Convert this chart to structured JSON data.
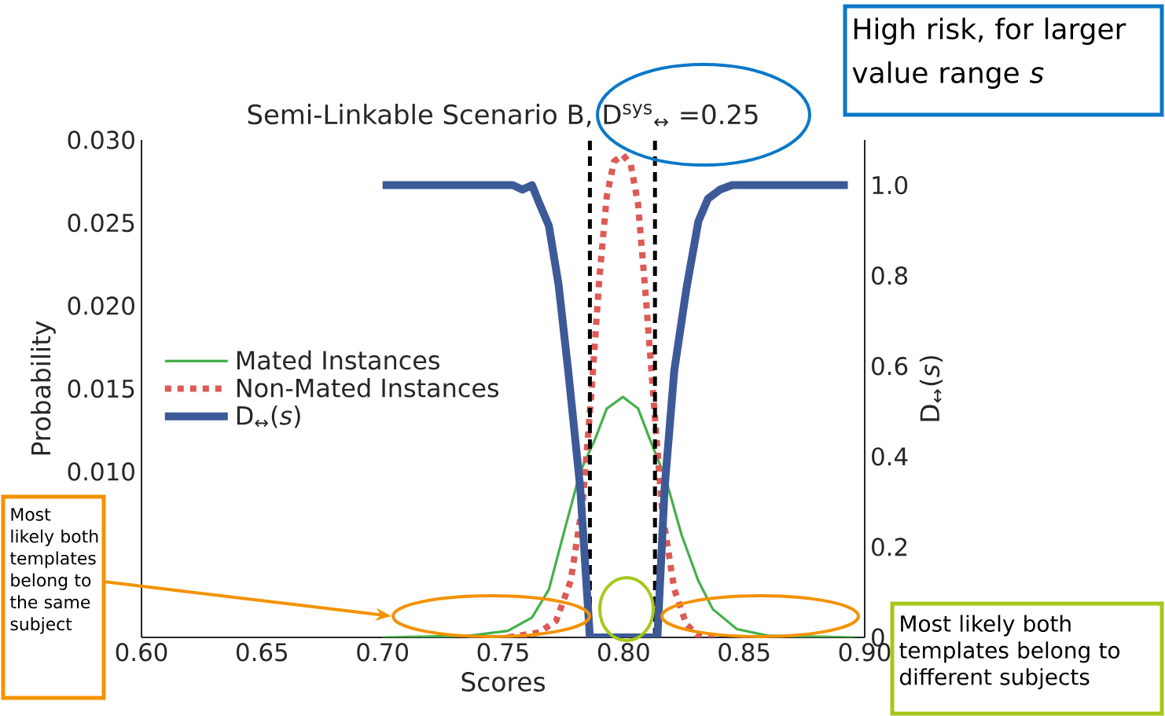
{
  "chart_data": {
    "type": "line",
    "title": "Semi-Linkable Scenario B, D$^{sys}$$_{↔}$ =0.25",
    "xlabel": "Scores",
    "ylabel": "Probability",
    "y2label": "D$_{↔}$(*s*)",
    "annotations": [
      "High risk, for larger value range *s*",
      "Most likely both templates belong to the same subject",
      "Most likely both templates belong to different subjects"
    ],
    "xlim": [
      0.6,
      0.9
    ],
    "xticks": [
      {
        "value": 0.6,
        "label": "0.60"
      },
      {
        "value": 0.65,
        "label": "0.65"
      },
      {
        "value": 0.7,
        "label": "0.70"
      },
      {
        "value": 0.75,
        "label": "0.75"
      },
      {
        "value": 0.8,
        "label": "0.80"
      },
      {
        "value": 0.85,
        "label": "0.85"
      },
      {
        "value": 0.9,
        "label": "0.90"
      }
    ],
    "ylim": [
      0,
      0.03
    ],
    "yticks": [
      {
        "value": 0.01,
        "label": "0.010"
      },
      {
        "value": 0.015,
        "label": "0.015"
      },
      {
        "value": 0.02,
        "label": "0.020"
      },
      {
        "value": 0.025,
        "label": "0.025"
      },
      {
        "value": 0.03,
        "label": "0.030"
      }
    ],
    "y2lim": [
      0,
      1.1
    ],
    "y2ticks": [
      {
        "value": 0,
        "label": "0"
      },
      {
        "value": 0.2,
        "label": "0.2"
      },
      {
        "value": 0.4,
        "label": "0.4"
      },
      {
        "value": 0.6,
        "label": "0.6"
      },
      {
        "value": 0.8,
        "label": "0.8"
      },
      {
        "value": 1.0,
        "label": "1.0"
      }
    ],
    "legend": "left",
    "grid": false,
    "marker": "none",
    "ref_lines": [
      {
        "axis": "x",
        "value": 0.786,
        "color": "#000000",
        "line_style": "dashed"
      },
      {
        "axis": "x",
        "value": 0.813,
        "color": "#000000",
        "line_style": "dashed"
      }
    ],
    "series": [
      {
        "name": "Mated Instances",
        "color": "#44b04a",
        "line_style": "solid",
        "x": [
          0.7,
          0.736,
          0.752,
          0.762,
          0.769,
          0.775,
          0.782,
          0.788,
          0.793,
          0.7997,
          0.806,
          0.811,
          0.8176,
          0.824,
          0.831,
          0.837,
          0.847,
          0.86,
          0.896
        ],
        "values": [
          0,
          0.0001,
          0.0004,
          0.0012,
          0.0029,
          0.0062,
          0.01,
          0.0119,
          0.0138,
          0.0145,
          0.0138,
          0.0119,
          0.0095,
          0.0062,
          0.0034,
          0.0017,
          0.0005,
          0.0001,
          0
        ]
      },
      {
        "name": "Non-Mated Instances",
        "color": "#dd5a55",
        "line_style": "dotted",
        "x": [
          0.752,
          0.765,
          0.772,
          0.778,
          0.783,
          0.7866,
          0.79,
          0.793,
          0.796,
          0.7997,
          0.803,
          0.806,
          0.809,
          0.8127,
          0.816,
          0.821,
          0.826,
          0.831,
          0.84
        ],
        "values": [
          0,
          0.0003,
          0.001,
          0.0034,
          0.0081,
          0.0147,
          0.0218,
          0.0266,
          0.0287,
          0.0291,
          0.0285,
          0.0261,
          0.0209,
          0.0138,
          0.0076,
          0.0029,
          0.0008,
          0.0001,
          0
        ]
      },
      {
        "name": "D$_{↔}$(*s*)",
        "color": "#3d5a98",
        "line_style": "solid",
        "axis": "y2",
        "x": [
          0.7,
          0.754,
          0.758,
          0.762,
          0.765,
          0.769,
          0.773,
          0.777,
          0.782,
          0.786,
          0.814,
          0.817,
          0.821,
          0.826,
          0.831,
          0.835,
          0.84,
          0.845,
          0.893
        ],
        "values": [
          1.0,
          1.0,
          0.99,
          1.0,
          0.96,
          0.91,
          0.78,
          0.59,
          0.33,
          0,
          0,
          0.33,
          0.59,
          0.77,
          0.92,
          0.97,
          0.99,
          1.0,
          1.0
        ]
      }
    ]
  }
}
